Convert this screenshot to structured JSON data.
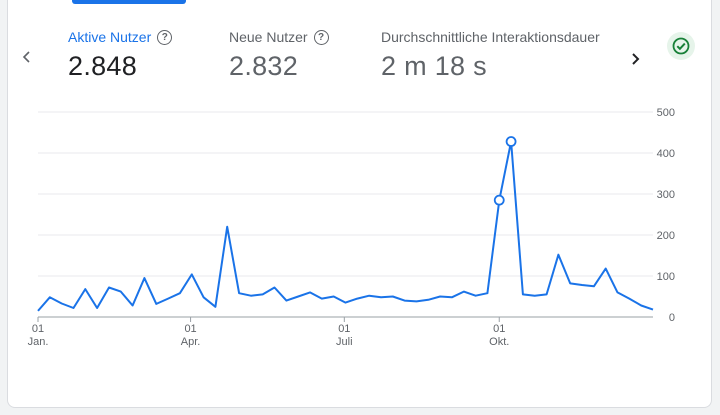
{
  "metrics": [
    {
      "label": "Aktive Nutzer",
      "value": "2.848",
      "active": true
    },
    {
      "label": "Neue Nutzer",
      "value": "2.832",
      "active": false
    },
    {
      "label": "Durchschnittliche Interaktionsdauer",
      "value": "2 m 18 s",
      "active": false
    }
  ],
  "nav": {
    "prev_icon": "chevron-left-icon",
    "next_icon": "chevron-right-icon"
  },
  "status_icon": "check-circle-icon",
  "colors": {
    "accent": "#1a73e8",
    "status_green": "#188038"
  },
  "chart_data": {
    "type": "line",
    "y_ticks": [
      "500",
      "400",
      "300",
      "200",
      "100",
      "0"
    ],
    "ylim": [
      0,
      500
    ],
    "x_ticks": [
      {
        "day": "01",
        "month": "Jan.",
        "week": 0
      },
      {
        "day": "01",
        "month": "Apr.",
        "week": 12.9
      },
      {
        "day": "01",
        "month": "Juli",
        "week": 25.9
      },
      {
        "day": "01",
        "month": "Okt.",
        "week": 39
      }
    ],
    "grid": true,
    "series": [
      {
        "values": [
          15,
          48,
          33,
          22,
          68,
          22,
          72,
          62,
          28,
          95,
          32,
          45,
          58,
          104,
          48,
          25,
          220,
          58,
          52,
          55,
          72,
          40,
          50,
          60,
          45,
          50,
          35,
          45,
          52,
          48,
          50,
          40,
          38,
          42,
          50,
          48,
          62,
          52,
          58,
          285,
          428,
          55,
          52,
          55,
          152,
          82,
          78,
          75,
          118,
          60,
          45,
          28,
          18
        ],
        "markers": [
          39,
          40
        ]
      }
    ]
  }
}
